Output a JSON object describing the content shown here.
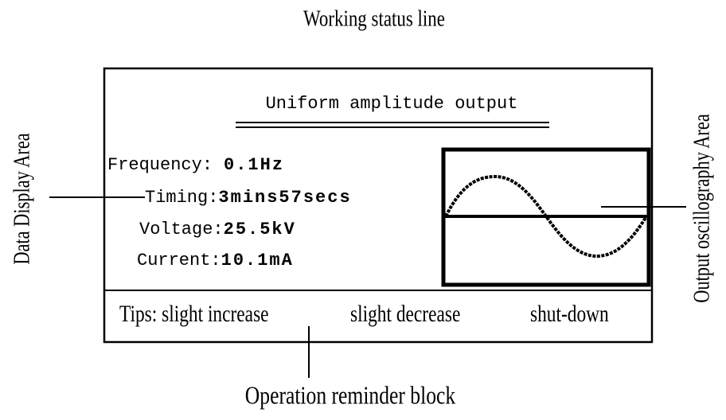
{
  "header": {
    "title": "Working status line"
  },
  "screen": {
    "title": "Uniform amplitude output",
    "rows": [
      {
        "label": "Frequency:",
        "value": "0.1Hz"
      },
      {
        "label": "Timing:",
        "value": "3mins57secs"
      },
      {
        "label": "Voltage:",
        "value": "25.5kV"
      },
      {
        "label": "Current:",
        "value": "10.1mA"
      }
    ],
    "tips": [
      "Tips: slight increase",
      "slight decrease",
      "shut-down"
    ]
  },
  "annotations": {
    "left": "Data Display Area",
    "right": "Output oscillography Area",
    "bottom": "Operation reminder block"
  }
}
